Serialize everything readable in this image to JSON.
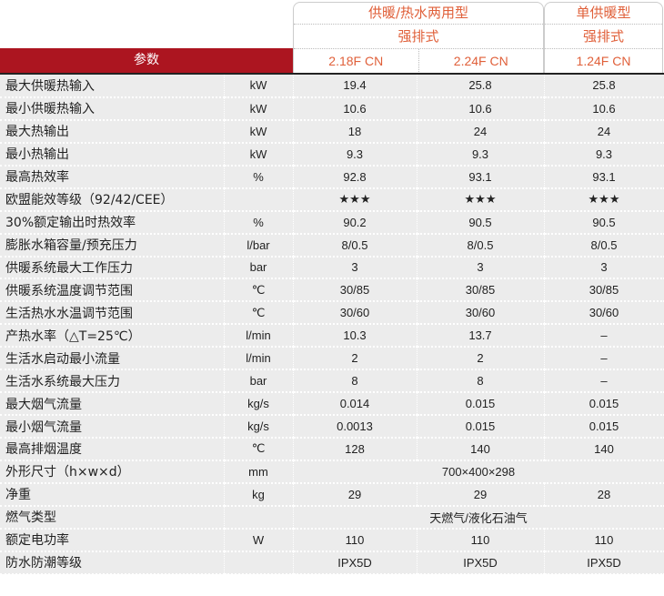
{
  "header": {
    "param_label": "参数",
    "group1": {
      "type": "供暖/热水两用型",
      "flue": "强排式",
      "models": [
        "2.18F  CN",
        "2.24F  CN"
      ]
    },
    "group2": {
      "type": "单供暖型",
      "flue": "强排式",
      "models": [
        "1.24F  CN"
      ]
    }
  },
  "rows": [
    {
      "label": "最大供暖热输入",
      "unit": "kW",
      "values": [
        "19.4",
        "25.8",
        "25.8"
      ]
    },
    {
      "label": "最小供暖热输入",
      "unit": "kW",
      "values": [
        "10.6",
        "10.6",
        "10.6"
      ]
    },
    {
      "label": "最大热输出",
      "unit": "kW",
      "values": [
        "18",
        "24",
        "24"
      ]
    },
    {
      "label": "最小热输出",
      "unit": "kW",
      "values": [
        "9.3",
        "9.3",
        "9.3"
      ]
    },
    {
      "label": "最高热效率",
      "unit": "%",
      "values": [
        "92.8",
        "93.1",
        "93.1"
      ]
    },
    {
      "label": "欧盟能效等级（92/42/CEE）",
      "unit": "",
      "values": [
        "★★★",
        "★★★",
        "★★★"
      ]
    },
    {
      "label": "30%额定输出时热效率",
      "unit": "%",
      "values": [
        "90.2",
        "90.5",
        "90.5"
      ]
    },
    {
      "label": "膨胀水箱容量/预充压力",
      "unit": "l/bar",
      "values": [
        "8/0.5",
        "8/0.5",
        "8/0.5"
      ]
    },
    {
      "label": "供暖系统最大工作压力",
      "unit": "bar",
      "values": [
        "3",
        "3",
        "3"
      ]
    },
    {
      "label": "供暖系统温度调节范围",
      "unit": "℃",
      "values": [
        "30/85",
        "30/85",
        "30/85"
      ]
    },
    {
      "label": "生活热水水温调节范围",
      "unit": "℃",
      "values": [
        "30/60",
        "30/60",
        "30/60"
      ]
    },
    {
      "label": "产热水率（△T=25℃）",
      "unit": "l/min",
      "values": [
        "10.3",
        "13.7",
        "–"
      ]
    },
    {
      "label": "生活水启动最小流量",
      "unit": "l/min",
      "values": [
        "2",
        "2",
        "–"
      ]
    },
    {
      "label": "生活水系统最大压力",
      "unit": "bar",
      "values": [
        "8",
        "8",
        "–"
      ]
    },
    {
      "label": "最大烟气流量",
      "unit": "kg/s",
      "values": [
        "0.014",
        "0.015",
        "0.015"
      ]
    },
    {
      "label": "最小烟气流量",
      "unit": "kg/s",
      "values": [
        "0.0013",
        "0.015",
        "0.015"
      ]
    },
    {
      "label": "最高排烟温度",
      "unit": "℃",
      "values": [
        "128",
        "140",
        "140"
      ]
    },
    {
      "label": "外形尺寸（h×w×d）",
      "unit": "mm",
      "merged": "700×400×298"
    },
    {
      "label": "净重",
      "unit": "kg",
      "values": [
        "29",
        "29",
        "28"
      ]
    },
    {
      "label": "燃气类型",
      "unit": "",
      "merged": "天燃气/液化石油气"
    },
    {
      "label": "额定电功率",
      "unit": "W",
      "values": [
        "110",
        "110",
        "110"
      ]
    },
    {
      "label": "防水防潮等级",
      "unit": "",
      "values": [
        "IPX5D",
        "IPX5D",
        "IPX5D"
      ]
    }
  ],
  "colors": {
    "header_red": "#ac1520",
    "model_text": "#e0603a",
    "row_bg": "#ececec"
  }
}
